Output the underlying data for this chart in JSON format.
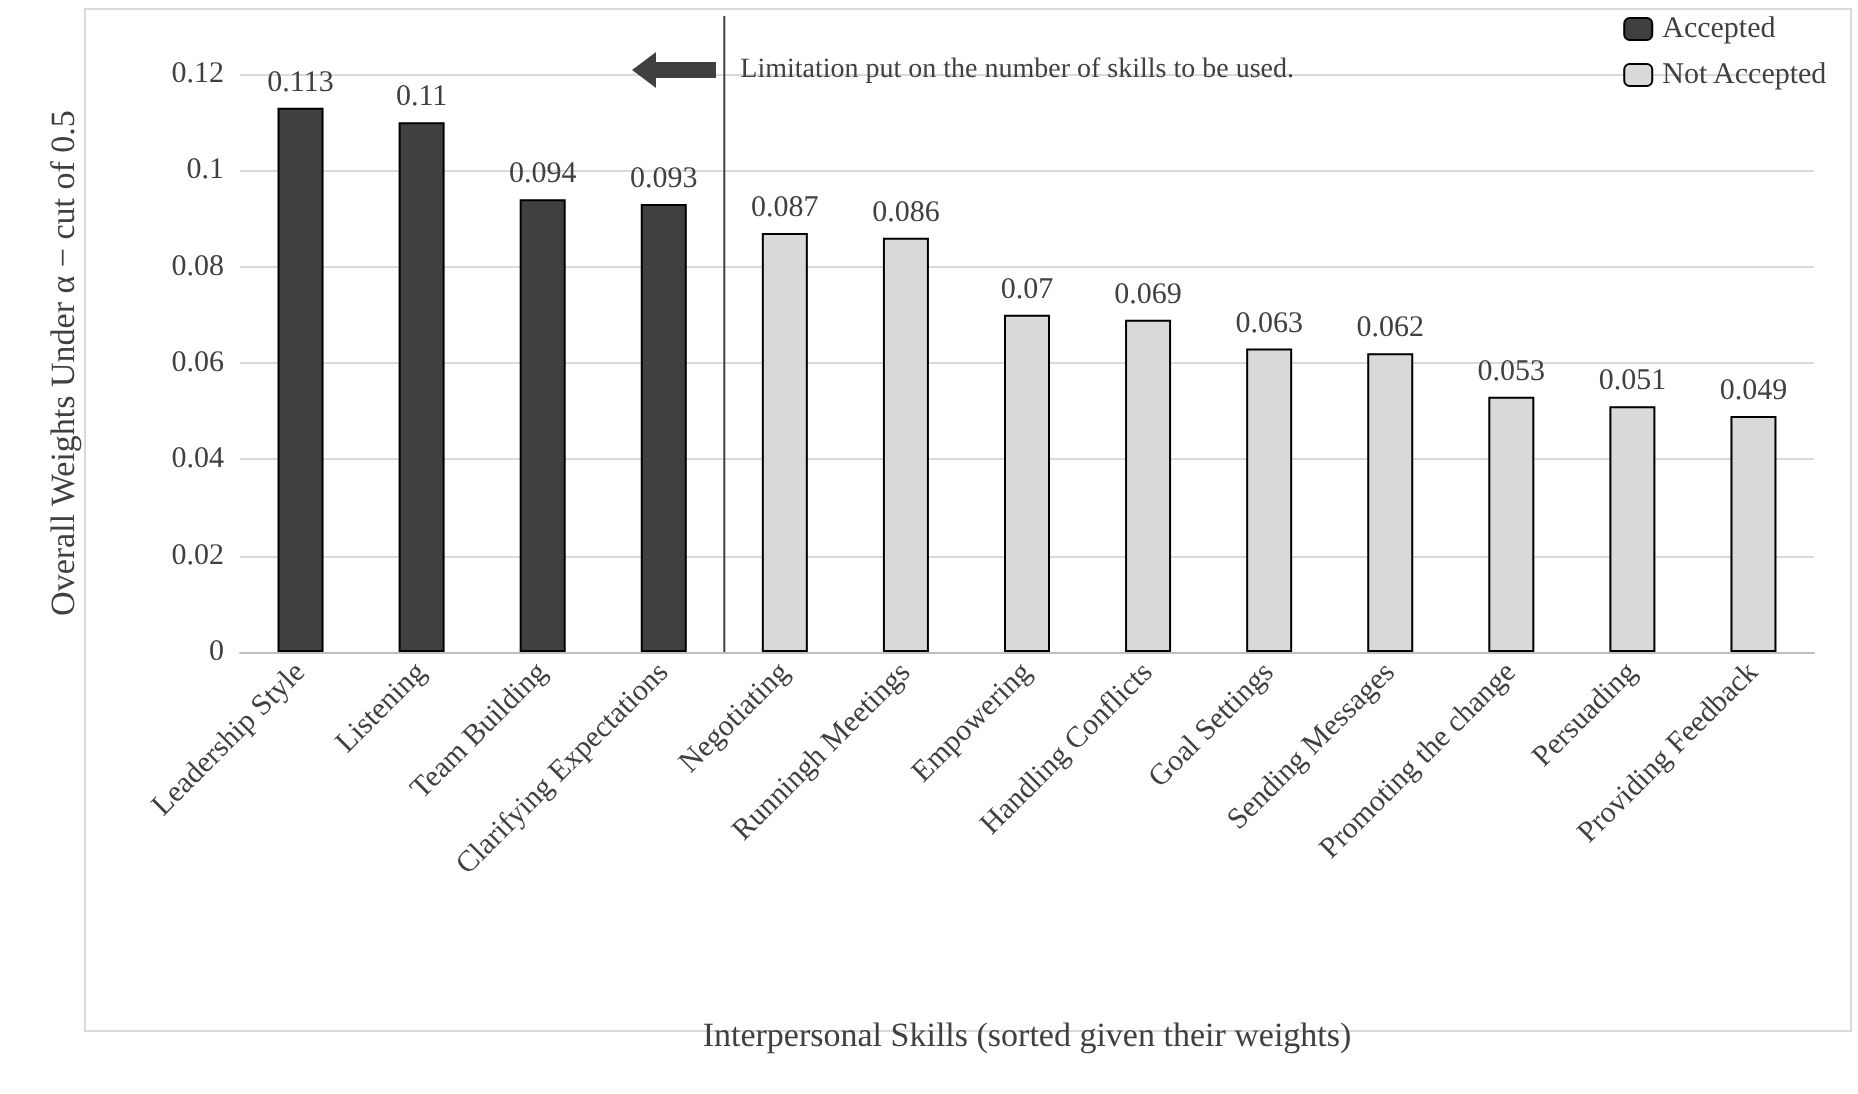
{
  "chart_data": {
    "type": "bar",
    "xlabel": "Interpersonal Skills (sorted given their weights)",
    "ylabel": "Overall Weights Under α − cut of 0.5",
    "categories": [
      "Leadership Style",
      "Listening",
      "Team Building",
      "Clarifying Expectations",
      "Negotiating",
      "Runningh Meetings",
      "Empowering",
      "Handling Conflicts",
      "Goal Settings",
      "Sending Messages",
      "Promoting the change",
      "Persuading",
      "Providing Feedback"
    ],
    "series": [
      {
        "name": "Accepted",
        "color": "#404040",
        "values": [
          0.113,
          0.11,
          0.094,
          0.093,
          null,
          null,
          null,
          null,
          null,
          null,
          null,
          null,
          null
        ]
      },
      {
        "name": "Not Accepted",
        "color": "#d9d9d9",
        "values": [
          null,
          null,
          null,
          null,
          0.087,
          0.086,
          0.07,
          0.069,
          0.063,
          0.062,
          0.053,
          0.051,
          0.049
        ]
      }
    ],
    "stacked": true,
    "ylim": [
      0,
      0.12
    ],
    "yticks": [
      0,
      0.02,
      0.04,
      0.06,
      0.08,
      0.1,
      0.12
    ],
    "grid": "y",
    "legend": "top right",
    "data_labels": true,
    "ref_lines": [
      {
        "axis": "x",
        "value": "Negotiating",
        "label": "Limitation put on the number of skills to be used.",
        "color": "#404040"
      }
    ]
  }
}
